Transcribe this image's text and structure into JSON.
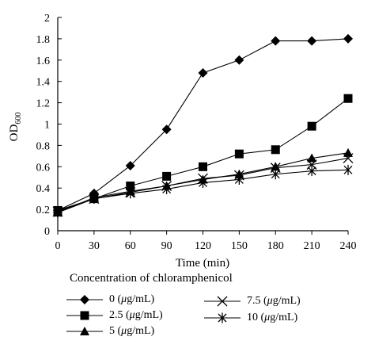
{
  "chart_data": {
    "type": "line",
    "title": "",
    "xlabel": "Time (min)",
    "ylabel": "OD600",
    "ylabel_main": "OD",
    "ylabel_sub": "600",
    "x": [
      0,
      30,
      60,
      90,
      120,
      150,
      180,
      210,
      240
    ],
    "xticks": [
      "0",
      "30",
      "60",
      "90",
      "120",
      "150",
      "180",
      "210",
      "240"
    ],
    "yticks": [
      "0",
      "0.2",
      "0.4",
      "0.6",
      "0.8",
      "1",
      "1.2",
      "1.4",
      "1.6",
      "1.8",
      "2"
    ],
    "xlim": [
      0,
      240
    ],
    "ylim": [
      0,
      2
    ],
    "grid": false,
    "legend_title": "Concentration of chloramphenicol",
    "legend_placement": "bottom",
    "series": [
      {
        "name": "0 (μg/mL)",
        "label_value": "0",
        "marker": "diamond",
        "values": [
          0.19,
          0.35,
          0.61,
          0.95,
          1.48,
          1.6,
          1.78,
          1.78,
          1.8
        ]
      },
      {
        "name": "2.5 (μg/mL)",
        "label_value": "2.5",
        "marker": "square",
        "values": [
          0.19,
          0.3,
          0.42,
          0.51,
          0.6,
          0.72,
          0.76,
          0.98,
          1.24
        ]
      },
      {
        "name": "5 (μg/mL)",
        "label_value": "5",
        "marker": "triangle",
        "values": [
          0.17,
          0.31,
          0.37,
          0.42,
          0.48,
          0.53,
          0.6,
          0.68,
          0.73
        ]
      },
      {
        "name": "7.5 (μg/mL)",
        "label_value": "7.5",
        "marker": "cross",
        "values": [
          0.18,
          0.3,
          0.36,
          0.42,
          0.49,
          0.52,
          0.59,
          0.62,
          0.68
        ]
      },
      {
        "name": "10 (μg/mL)",
        "label_value": "10",
        "marker": "asterisk",
        "values": [
          0.17,
          0.3,
          0.35,
          0.39,
          0.45,
          0.48,
          0.53,
          0.56,
          0.57
        ]
      }
    ],
    "legend_unit_prefix": " (",
    "legend_unit_mu": "μ",
    "legend_unit_rest": "g/mL)",
    "line_color": "#000000"
  }
}
